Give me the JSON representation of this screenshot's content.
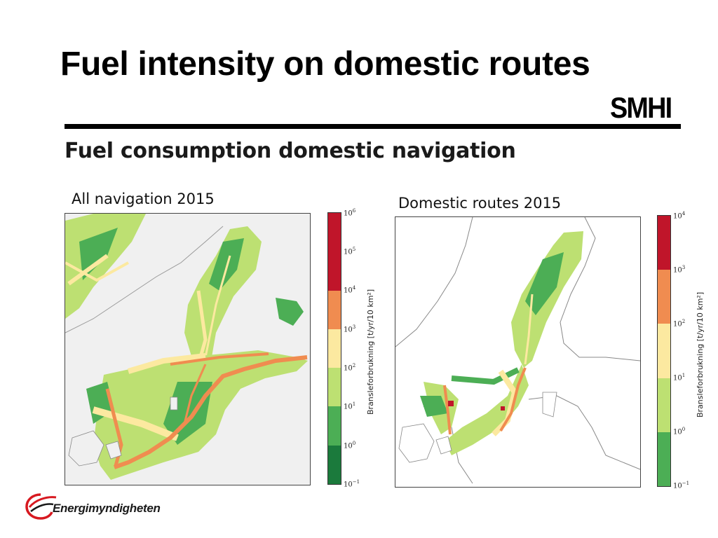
{
  "slide": {
    "title": "Fuel intensity on domestic routes",
    "subtitle": "Fuel consumption domestic navigation",
    "smhi_logo_text": "SMHI",
    "agency_logo_text": "Energimyndigheten"
  },
  "maps": [
    {
      "id": "left",
      "title": "All navigation 2015",
      "colorbar": {
        "label": "Bransleforbrukning [t/yr/10 km²]",
        "ticks": [
          {
            "base": "10",
            "exp": "6"
          },
          {
            "base": "10",
            "exp": "5"
          },
          {
            "base": "10",
            "exp": "4"
          },
          {
            "base": "10",
            "exp": "3"
          },
          {
            "base": "10",
            "exp": "2"
          },
          {
            "base": "10",
            "exp": "1"
          },
          {
            "base": "10",
            "exp": "0"
          },
          {
            "base": "10",
            "exp": "−1"
          }
        ],
        "colors": [
          "#c0152a",
          "#c0152a",
          "#f08c50",
          "#fce9a0",
          "#bde072",
          "#4cae55",
          "#1b7a3c"
        ]
      }
    },
    {
      "id": "right",
      "title": "Domestic routes 2015",
      "colorbar": {
        "label": "Bransleforbrukning [t/yr/10 km²]",
        "ticks": [
          {
            "base": "10",
            "exp": "4"
          },
          {
            "base": "10",
            "exp": "3"
          },
          {
            "base": "10",
            "exp": "2"
          },
          {
            "base": "10",
            "exp": "1"
          },
          {
            "base": "10",
            "exp": "0"
          },
          {
            "base": "10",
            "exp": "−1"
          }
        ],
        "colors": [
          "#c0152a",
          "#f08c50",
          "#fce9a0",
          "#bde072",
          "#4cae55"
        ]
      }
    }
  ],
  "colors": {
    "land": "#f0f0f0",
    "sea_low": "#4cae55",
    "sea_mid": "#bde072",
    "sea_route": "#fce9a0",
    "route_high": "#f08c50",
    "route_peak": "#c0152a",
    "logo_red": "#d71920"
  }
}
